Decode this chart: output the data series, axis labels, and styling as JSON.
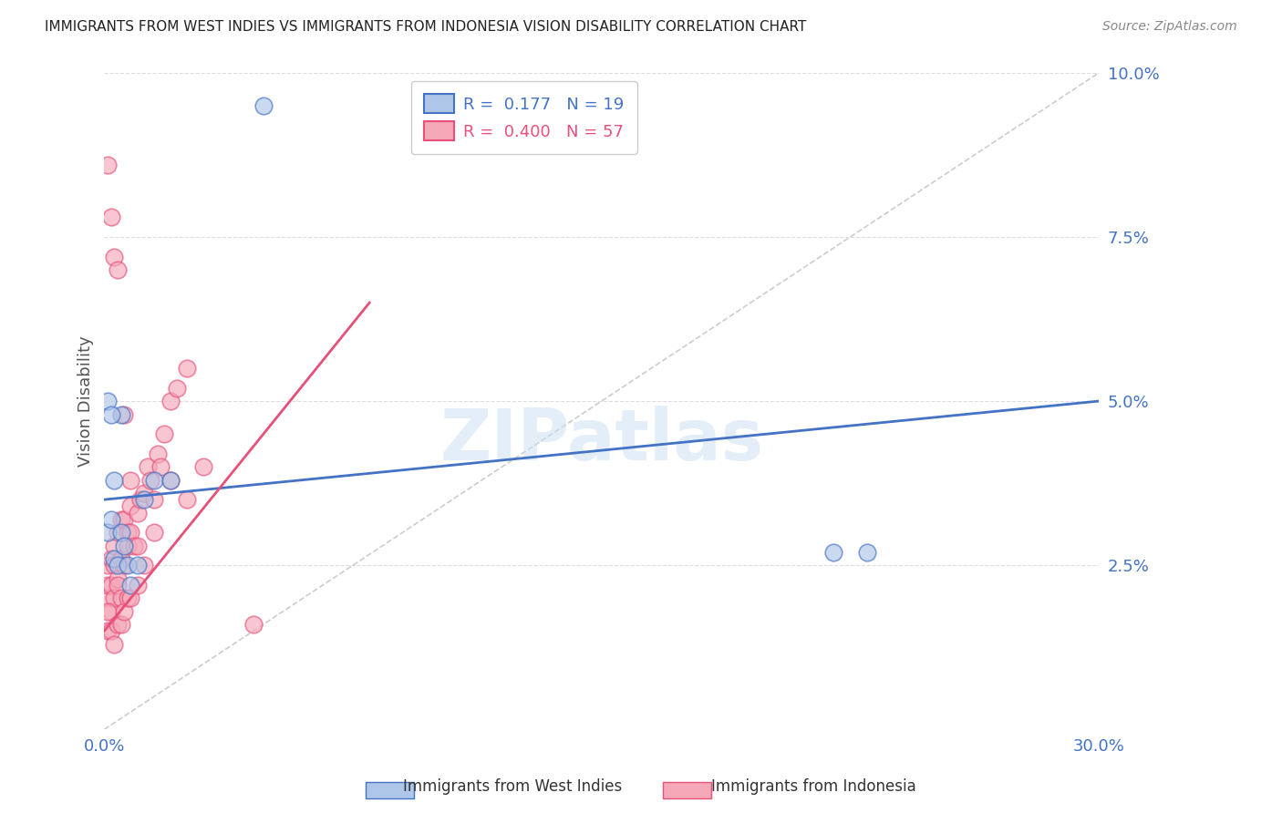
{
  "title": "IMMIGRANTS FROM WEST INDIES VS IMMIGRANTS FROM INDONESIA VISION DISABILITY CORRELATION CHART",
  "source": "Source: ZipAtlas.com",
  "ylabel": "Vision Disability",
  "xlim": [
    0.0,
    0.3
  ],
  "ylim": [
    0.0,
    0.1
  ],
  "west_indies_color": "#aec6e8",
  "indonesia_color": "#f4a8b8",
  "west_indies_line_color": "#4472c4",
  "indonesia_line_color": "#e8507a",
  "diagonal_color": "#c0c0c0",
  "wi_R": 0.177,
  "wi_N": 19,
  "ind_R": 0.4,
  "ind_N": 57,
  "wi_x": [
    0.001,
    0.002,
    0.003,
    0.004,
    0.005,
    0.006,
    0.007,
    0.008,
    0.01,
    0.012,
    0.015,
    0.02,
    0.005,
    0.001,
    0.002,
    0.003,
    0.048,
    0.22,
    0.23
  ],
  "wi_y": [
    0.03,
    0.032,
    0.026,
    0.025,
    0.03,
    0.028,
    0.025,
    0.022,
    0.025,
    0.035,
    0.038,
    0.038,
    0.048,
    0.05,
    0.048,
    0.038,
    0.095,
    0.027,
    0.027
  ],
  "ind_x": [
    0.001,
    0.001,
    0.001,
    0.001,
    0.002,
    0.002,
    0.002,
    0.003,
    0.003,
    0.003,
    0.004,
    0.004,
    0.004,
    0.005,
    0.005,
    0.005,
    0.006,
    0.006,
    0.007,
    0.007,
    0.008,
    0.008,
    0.009,
    0.01,
    0.01,
    0.011,
    0.012,
    0.013,
    0.014,
    0.015,
    0.016,
    0.017,
    0.018,
    0.02,
    0.022,
    0.025,
    0.001,
    0.002,
    0.003,
    0.004,
    0.005,
    0.006,
    0.007,
    0.008,
    0.01,
    0.012,
    0.015,
    0.02,
    0.025,
    0.03,
    0.001,
    0.002,
    0.003,
    0.004,
    0.006,
    0.008,
    0.045
  ],
  "ind_y": [
    0.02,
    0.022,
    0.025,
    0.015,
    0.022,
    0.018,
    0.026,
    0.025,
    0.02,
    0.028,
    0.023,
    0.03,
    0.022,
    0.026,
    0.032,
    0.02,
    0.025,
    0.032,
    0.03,
    0.028,
    0.03,
    0.034,
    0.028,
    0.028,
    0.033,
    0.035,
    0.036,
    0.04,
    0.038,
    0.035,
    0.042,
    0.04,
    0.045,
    0.05,
    0.052,
    0.055,
    0.018,
    0.015,
    0.013,
    0.016,
    0.016,
    0.018,
    0.02,
    0.02,
    0.022,
    0.025,
    0.03,
    0.038,
    0.035,
    0.04,
    0.086,
    0.078,
    0.072,
    0.07,
    0.048,
    0.038,
    0.016
  ],
  "ind_line_x_start": 0.0,
  "ind_line_x_end": 0.08,
  "wi_line_x_start": 0.0,
  "wi_line_x_end": 0.3,
  "wi_line_y_start": 0.035,
  "wi_line_y_end": 0.05,
  "ind_line_y_start": 0.015,
  "ind_line_y_end": 0.065
}
